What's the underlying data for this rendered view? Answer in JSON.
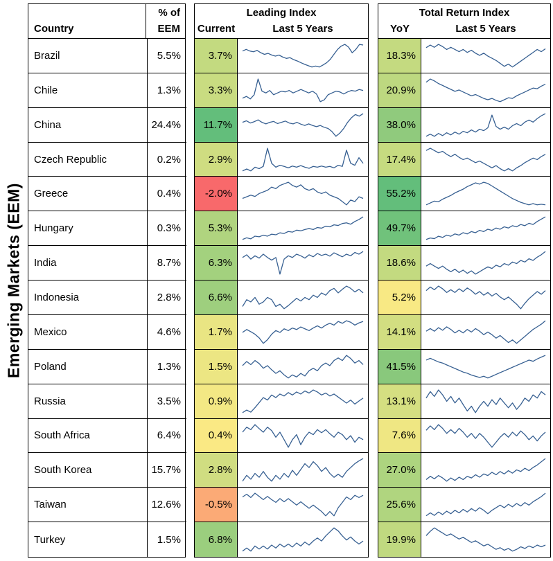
{
  "title": "Emerging Markets (EEM)",
  "colors": {
    "sparkline": "#376092",
    "border": "#000000",
    "background": "#ffffff"
  },
  "headers": {
    "pct_of": "% of",
    "eem": "EEM",
    "country": "Country",
    "leading_title": "Leading Index",
    "current": "Current",
    "last5_leading": "Last 5 Years",
    "tr_title": "Total Return Index",
    "yoy": "YoY",
    "last5_tr": "Last 5 Years"
  },
  "chart_data": {
    "type": "table",
    "title": "Emerging Markets (EEM)",
    "columns": [
      "Country",
      "% of EEM",
      "Leading Index Current",
      "Leading Index Last 5 Years (sparkline)",
      "Total Return Index YoY",
      "Total Return Index Last 5 Years (sparkline)"
    ],
    "sparkline_note": "sparkline values are approximate relative levels over last 5 years, unlabeled axes",
    "rows": [
      {
        "country": "Brazil",
        "weight": "5.5%",
        "current": "3.7%",
        "current_color": "#c3da80",
        "yoy": "18.3%",
        "yoy_color": "#c4da80",
        "leading_spark": [
          7,
          7.5,
          7,
          6.8,
          7.2,
          6.5,
          6,
          6.3,
          5.8,
          5.5,
          5.8,
          5.2,
          4.8,
          5,
          4.4,
          4,
          3.5,
          3,
          2.6,
          2.2,
          2.5,
          2.2,
          2.8,
          3.5,
          4.5,
          6,
          7.5,
          8.5,
          9,
          8.2,
          6.5,
          7.5,
          9,
          8.8
        ],
        "tr_spark": [
          7.5,
          8.2,
          7.6,
          8.4,
          7.8,
          7,
          7.6,
          7,
          6.4,
          7,
          6.2,
          6.8,
          6,
          5.4,
          6,
          5.2,
          4.6,
          4,
          3.2,
          2.4,
          3,
          2.2,
          3,
          3.8,
          4.6,
          5.4,
          6.2,
          7,
          6.4,
          7.2
        ]
      },
      {
        "country": "Chile",
        "weight": "1.3%",
        "current": "3.3%",
        "current_color": "#c9dc81",
        "yoy": "20.9%",
        "yoy_color": "#bdd880",
        "leading_spark": [
          4,
          4.5,
          3.8,
          5,
          9.5,
          6,
          5.5,
          6.2,
          5,
          5.5,
          6,
          5.8,
          6.2,
          5.5,
          6,
          6.5,
          6,
          5.5,
          6,
          5.2,
          3,
          3.5,
          5,
          5.5,
          6,
          5.8,
          5.2,
          5.8,
          6.2,
          6,
          6.5,
          6.2
        ],
        "tr_spark": [
          8,
          9,
          8.4,
          7.6,
          7,
          6.4,
          5.8,
          5.2,
          5.6,
          5,
          4.4,
          3.8,
          4.2,
          3.6,
          3,
          2.6,
          3,
          2.4,
          2,
          2.6,
          3.2,
          3,
          3.8,
          4.4,
          5,
          5.6,
          6.2,
          6,
          6.8,
          7.4
        ]
      },
      {
        "country": "China",
        "weight": "24.4%",
        "current": "11.7%",
        "current_color": "#63be7b",
        "yoy": "38.0%",
        "yoy_color": "#90ca7d",
        "leading_spark": [
          6,
          6.5,
          5.8,
          6.2,
          6.8,
          6,
          5.5,
          6,
          6.3,
          5.6,
          6,
          6.4,
          5.8,
          5.5,
          6,
          5.4,
          5,
          5.5,
          5,
          4.6,
          5,
          4.4,
          4,
          3,
          1.5,
          2.5,
          4,
          6,
          7.5,
          8.5,
          8,
          8.8
        ],
        "tr_spark": [
          3,
          3.6,
          3,
          3.8,
          3.2,
          4,
          3.4,
          4.2,
          3.6,
          4.4,
          4,
          4.8,
          4.2,
          5,
          4.6,
          5.4,
          9,
          5.8,
          5,
          5.6,
          5,
          6,
          6.6,
          6,
          7,
          7.6,
          7,
          8,
          8.8,
          9.4
        ]
      },
      {
        "country": "Czech Republic",
        "weight": "0.2%",
        "current": "2.9%",
        "current_color": "#cfdd81",
        "yoy": "17.4%",
        "yoy_color": "#c6db80",
        "leading_spark": [
          3,
          3.5,
          3,
          4,
          3.6,
          4.2,
          9,
          5,
          4,
          4.5,
          4.2,
          3.8,
          4.3,
          4,
          4.4,
          4,
          3.7,
          4.2,
          4,
          4.3,
          4,
          4.2,
          3.8,
          4.5,
          4.2,
          8.5,
          5,
          4.5,
          6.5,
          5
        ],
        "tr_spark": [
          8,
          8.6,
          8,
          7.4,
          7.8,
          7,
          6.4,
          7,
          6.2,
          5.6,
          6,
          5.4,
          4.8,
          5.2,
          4.6,
          4,
          3.4,
          4,
          3.2,
          2.6,
          3.2,
          2.6,
          3.4,
          4,
          4.8,
          5.4,
          6,
          5.6,
          6.4,
          7
        ]
      },
      {
        "country": "Greece",
        "weight": "0.4%",
        "current": "-2.0%",
        "current_color": "#f8696b",
        "yoy": "55.2%",
        "yoy_color": "#63be7b",
        "leading_spark": [
          3,
          3.5,
          4,
          3.6,
          4.5,
          5,
          5.5,
          6.5,
          6,
          7,
          7.5,
          8,
          7,
          6.5,
          7.2,
          6,
          5.5,
          6,
          5,
          4.5,
          5,
          4,
          3.5,
          3,
          2,
          1,
          2.5,
          2,
          3.5,
          3
        ],
        "tr_spark": [
          2,
          2.6,
          3.2,
          3,
          3.8,
          4.4,
          5,
          5.8,
          6.4,
          7,
          7.8,
          8.4,
          9,
          8.6,
          9.2,
          8.8,
          8,
          7.2,
          6.4,
          5.6,
          4.8,
          4,
          3.4,
          2.8,
          2.4,
          2,
          2.4,
          2,
          2.2,
          2
        ]
      },
      {
        "country": "Hungary",
        "weight": "0.3%",
        "current": "5.3%",
        "current_color": "#b0d47f",
        "yoy": "49.7%",
        "yoy_color": "#70c27b",
        "leading_spark": [
          2,
          2.5,
          2.2,
          3,
          2.8,
          3.3,
          3,
          3.6,
          3.4,
          4,
          3.8,
          4.4,
          4.2,
          4.8,
          4.6,
          5,
          5.3,
          5,
          5.6,
          5.4,
          6,
          5.8,
          6.4,
          6.2,
          6.8,
          7,
          6.6,
          7.4,
          8,
          8.8
        ],
        "tr_spark": [
          1.5,
          2,
          1.8,
          2.6,
          2.2,
          3,
          2.6,
          3.4,
          3,
          3.8,
          3.4,
          4.2,
          3.8,
          4.6,
          4.2,
          5,
          4.6,
          5.4,
          5,
          5.8,
          5.4,
          6.2,
          5.8,
          6.6,
          6.2,
          7,
          6.6,
          7.6,
          8.4,
          9.2
        ]
      },
      {
        "country": "India",
        "weight": "8.7%",
        "current": "6.3%",
        "current_color": "#a3d17e",
        "yoy": "18.6%",
        "yoy_color": "#c3da80",
        "leading_spark": [
          6,
          6.8,
          5.5,
          6.5,
          5.8,
          7,
          6,
          5.2,
          6,
          1,
          5.5,
          6.5,
          6,
          7,
          6.5,
          5.8,
          6.8,
          6.2,
          7.2,
          6.6,
          7,
          6.4,
          7.4,
          6.8,
          6.2,
          7,
          6.5,
          7.5,
          7,
          7.8
        ],
        "tr_spark": [
          5,
          5.6,
          5,
          4.4,
          5,
          4.2,
          3.6,
          4.2,
          3.4,
          4,
          3.2,
          3.8,
          3,
          3.6,
          4.2,
          4.8,
          4.4,
          5.2,
          4.8,
          5.6,
          5.2,
          6,
          5.6,
          6.4,
          6,
          6.8,
          6.4,
          7.2,
          7.8,
          8.6
        ]
      },
      {
        "country": "Indonesia",
        "weight": "2.8%",
        "current": "6.6%",
        "current_color": "#9ecf7e",
        "yoy": "5.2%",
        "yoy_color": "#f8e984",
        "leading_spark": [
          4,
          5.5,
          5,
          6,
          4.5,
          5,
          6,
          5.5,
          4,
          4.5,
          3.5,
          4.2,
          5,
          5.8,
          5.2,
          6,
          5.5,
          6.5,
          6,
          7,
          6.5,
          7.5,
          8,
          7,
          7.8,
          8.5,
          8,
          7.2,
          7.8,
          7
        ],
        "tr_spark": [
          6,
          6.8,
          6.2,
          7,
          6.4,
          5.6,
          6.2,
          5.6,
          6.4,
          5.8,
          6.6,
          6,
          5.2,
          5.8,
          5,
          5.6,
          4.8,
          5.4,
          4.6,
          4,
          4.6,
          3.8,
          3,
          2,
          3.2,
          4.2,
          5,
          5.8,
          5.2,
          6
        ]
      },
      {
        "country": "Mexico",
        "weight": "4.6%",
        "current": "1.7%",
        "current_color": "#e9e583",
        "yoy": "14.1%",
        "yoy_color": "#d2de81",
        "leading_spark": [
          5,
          5.8,
          5.2,
          4.5,
          3.5,
          2,
          3,
          4.5,
          5.5,
          5,
          6,
          5.5,
          6.2,
          5.8,
          6.5,
          6,
          5.5,
          6.2,
          6.8,
          6.2,
          7,
          7.5,
          7,
          8,
          7.5,
          8.2,
          7.8,
          7,
          7.6,
          8
        ],
        "tr_spark": [
          6,
          6.6,
          6,
          6.8,
          6.2,
          7,
          6.4,
          5.6,
          6.2,
          5.6,
          6.4,
          5.8,
          6.6,
          6,
          5.2,
          5.8,
          5.2,
          4.4,
          5,
          4.2,
          3.4,
          4,
          3.2,
          4,
          4.8,
          5.6,
          6.4,
          7,
          7.6,
          8.4
        ]
      },
      {
        "country": "Poland",
        "weight": "1.3%",
        "current": "1.5%",
        "current_color": "#ece683",
        "yoy": "41.5%",
        "yoy_color": "#89c87c",
        "leading_spark": [
          6,
          6.8,
          6.2,
          7,
          6.4,
          5.5,
          6,
          5.2,
          4.5,
          5,
          4.2,
          3.6,
          4.2,
          3.8,
          4.5,
          4,
          5,
          5.5,
          5,
          6,
          6.5,
          6,
          7,
          7.5,
          7,
          8,
          7.4,
          6.5,
          7,
          6.2
        ],
        "tr_spark": [
          8,
          8.6,
          8,
          7.4,
          7,
          6.4,
          5.8,
          5.2,
          4.6,
          4,
          3.6,
          3,
          2.6,
          2.2,
          2.6,
          2,
          2.6,
          3.2,
          3.8,
          4.4,
          5,
          5.6,
          6.2,
          6.8,
          7.4,
          8,
          7.6,
          8.4,
          9,
          9.6
        ]
      },
      {
        "country": "Russia",
        "weight": "3.5%",
        "current": "0.9%",
        "current_color": "#f3e884",
        "yoy": "13.1%",
        "yoy_color": "#d5df81",
        "leading_spark": [
          2.5,
          3,
          2.6,
          3.5,
          4.5,
          5.5,
          5,
          6,
          5.5,
          6.2,
          5.8,
          6.5,
          6,
          6.6,
          6.2,
          6.8,
          6.4,
          7,
          6.6,
          6,
          6.4,
          5.8,
          6.2,
          5.6,
          5,
          4.4,
          5,
          4.2,
          4.8,
          5.4
        ],
        "tr_spark": [
          5,
          5.8,
          5.2,
          6,
          5.4,
          4.6,
          5.2,
          4.4,
          5,
          4.2,
          3.4,
          4,
          3.2,
          4,
          4.6,
          4,
          4.8,
          4.2,
          5,
          4.4,
          3.8,
          4.4,
          3.6,
          4.2,
          5,
          4.6,
          5.4,
          5,
          5.8,
          5.4
        ]
      },
      {
        "country": "South Africa",
        "weight": "6.4%",
        "current": "0.4%",
        "current_color": "#fae984",
        "yoy": "7.6%",
        "yoy_color": "#efe783",
        "leading_spark": [
          5.5,
          6.5,
          6,
          7,
          6.2,
          5.5,
          6.5,
          5.8,
          4.5,
          5.5,
          4,
          2.5,
          4,
          5,
          3,
          4.5,
          5.5,
          5,
          6,
          5.4,
          6,
          5.2,
          4.5,
          5.5,
          5,
          4,
          4.8,
          3.5,
          4.5,
          4
        ],
        "tr_spark": [
          5.5,
          6.2,
          5.6,
          6.4,
          5.8,
          5,
          5.6,
          5,
          5.8,
          5.2,
          4.4,
          5,
          4.2,
          5,
          4.4,
          3.6,
          2.8,
          3.6,
          4.4,
          5,
          4.4,
          5.2,
          4.6,
          5.4,
          4.8,
          4,
          4.6,
          3.8,
          4.6,
          5.2
        ]
      },
      {
        "country": "South Korea",
        "weight": "15.7%",
        "current": "2.8%",
        "current_color": "#d0dd81",
        "yoy": "27.0%",
        "yoy_color": "#add47f",
        "leading_spark": [
          4,
          5.5,
          4.5,
          6,
          5,
          6.5,
          5,
          4,
          5.5,
          4.5,
          6,
          5,
          6.8,
          5.5,
          7,
          8.5,
          7.5,
          9,
          8,
          6.5,
          7.5,
          6,
          5,
          5.8,
          5,
          6.5,
          7.5,
          8.5,
          9.2,
          9.8
        ],
        "tr_spark": [
          4,
          4.8,
          4.2,
          5,
          4.4,
          3.6,
          4.4,
          3.8,
          4.6,
          4,
          4.8,
          4.4,
          5.2,
          4.6,
          5.4,
          5,
          5.8,
          5.2,
          6,
          5.4,
          6.2,
          5.6,
          6.4,
          6,
          6.8,
          6.2,
          7,
          7.6,
          8.4,
          9.2
        ]
      },
      {
        "country": "Taiwan",
        "weight": "12.6%",
        "current": "-0.5%",
        "current_color": "#fbaa76",
        "yoy": "25.6%",
        "yoy_color": "#b0d57f",
        "leading_spark": [
          6.5,
          7,
          6.4,
          7.2,
          6.6,
          6,
          6.6,
          6,
          5.5,
          6.2,
          5.6,
          6.2,
          5.6,
          5,
          5.6,
          5,
          4.4,
          5,
          4.4,
          3.8,
          3,
          3.8,
          3,
          4.5,
          5.5,
          6.5,
          6,
          6.8,
          6.4,
          6.8
        ],
        "tr_spark": [
          3.5,
          4.2,
          3.6,
          4.4,
          3.8,
          4.6,
          4,
          4.8,
          4.2,
          5,
          4.4,
          5.2,
          4.6,
          5.4,
          4.8,
          4,
          4.8,
          5.4,
          6,
          5.4,
          6.2,
          5.6,
          6.4,
          5.8,
          6.6,
          6,
          6.8,
          7.4,
          8,
          8.8
        ]
      },
      {
        "country": "Turkey",
        "weight": "1.5%",
        "current": "6.8%",
        "current_color": "#9bce7e",
        "yoy": "19.9%",
        "yoy_color": "#c0d980",
        "leading_spark": [
          4,
          4.6,
          4,
          5,
          4.4,
          5,
          4.4,
          5.2,
          4.6,
          5.4,
          4.8,
          5.4,
          4.8,
          5.6,
          5,
          5.8,
          5.2,
          6,
          6.6,
          6,
          7,
          7.8,
          8.6,
          8,
          7,
          6.2,
          6.8,
          6,
          5.4,
          6
        ],
        "tr_spark": [
          6,
          7,
          7.8,
          7.2,
          6.6,
          6,
          6.4,
          5.8,
          5.2,
          5.6,
          5,
          4.4,
          4.8,
          4.2,
          3.6,
          4,
          3.4,
          2.8,
          3.2,
          2.6,
          3,
          2.4,
          2.8,
          3.4,
          3,
          3.6,
          3.2,
          3.8,
          3.4,
          3.8
        ]
      }
    ]
  }
}
